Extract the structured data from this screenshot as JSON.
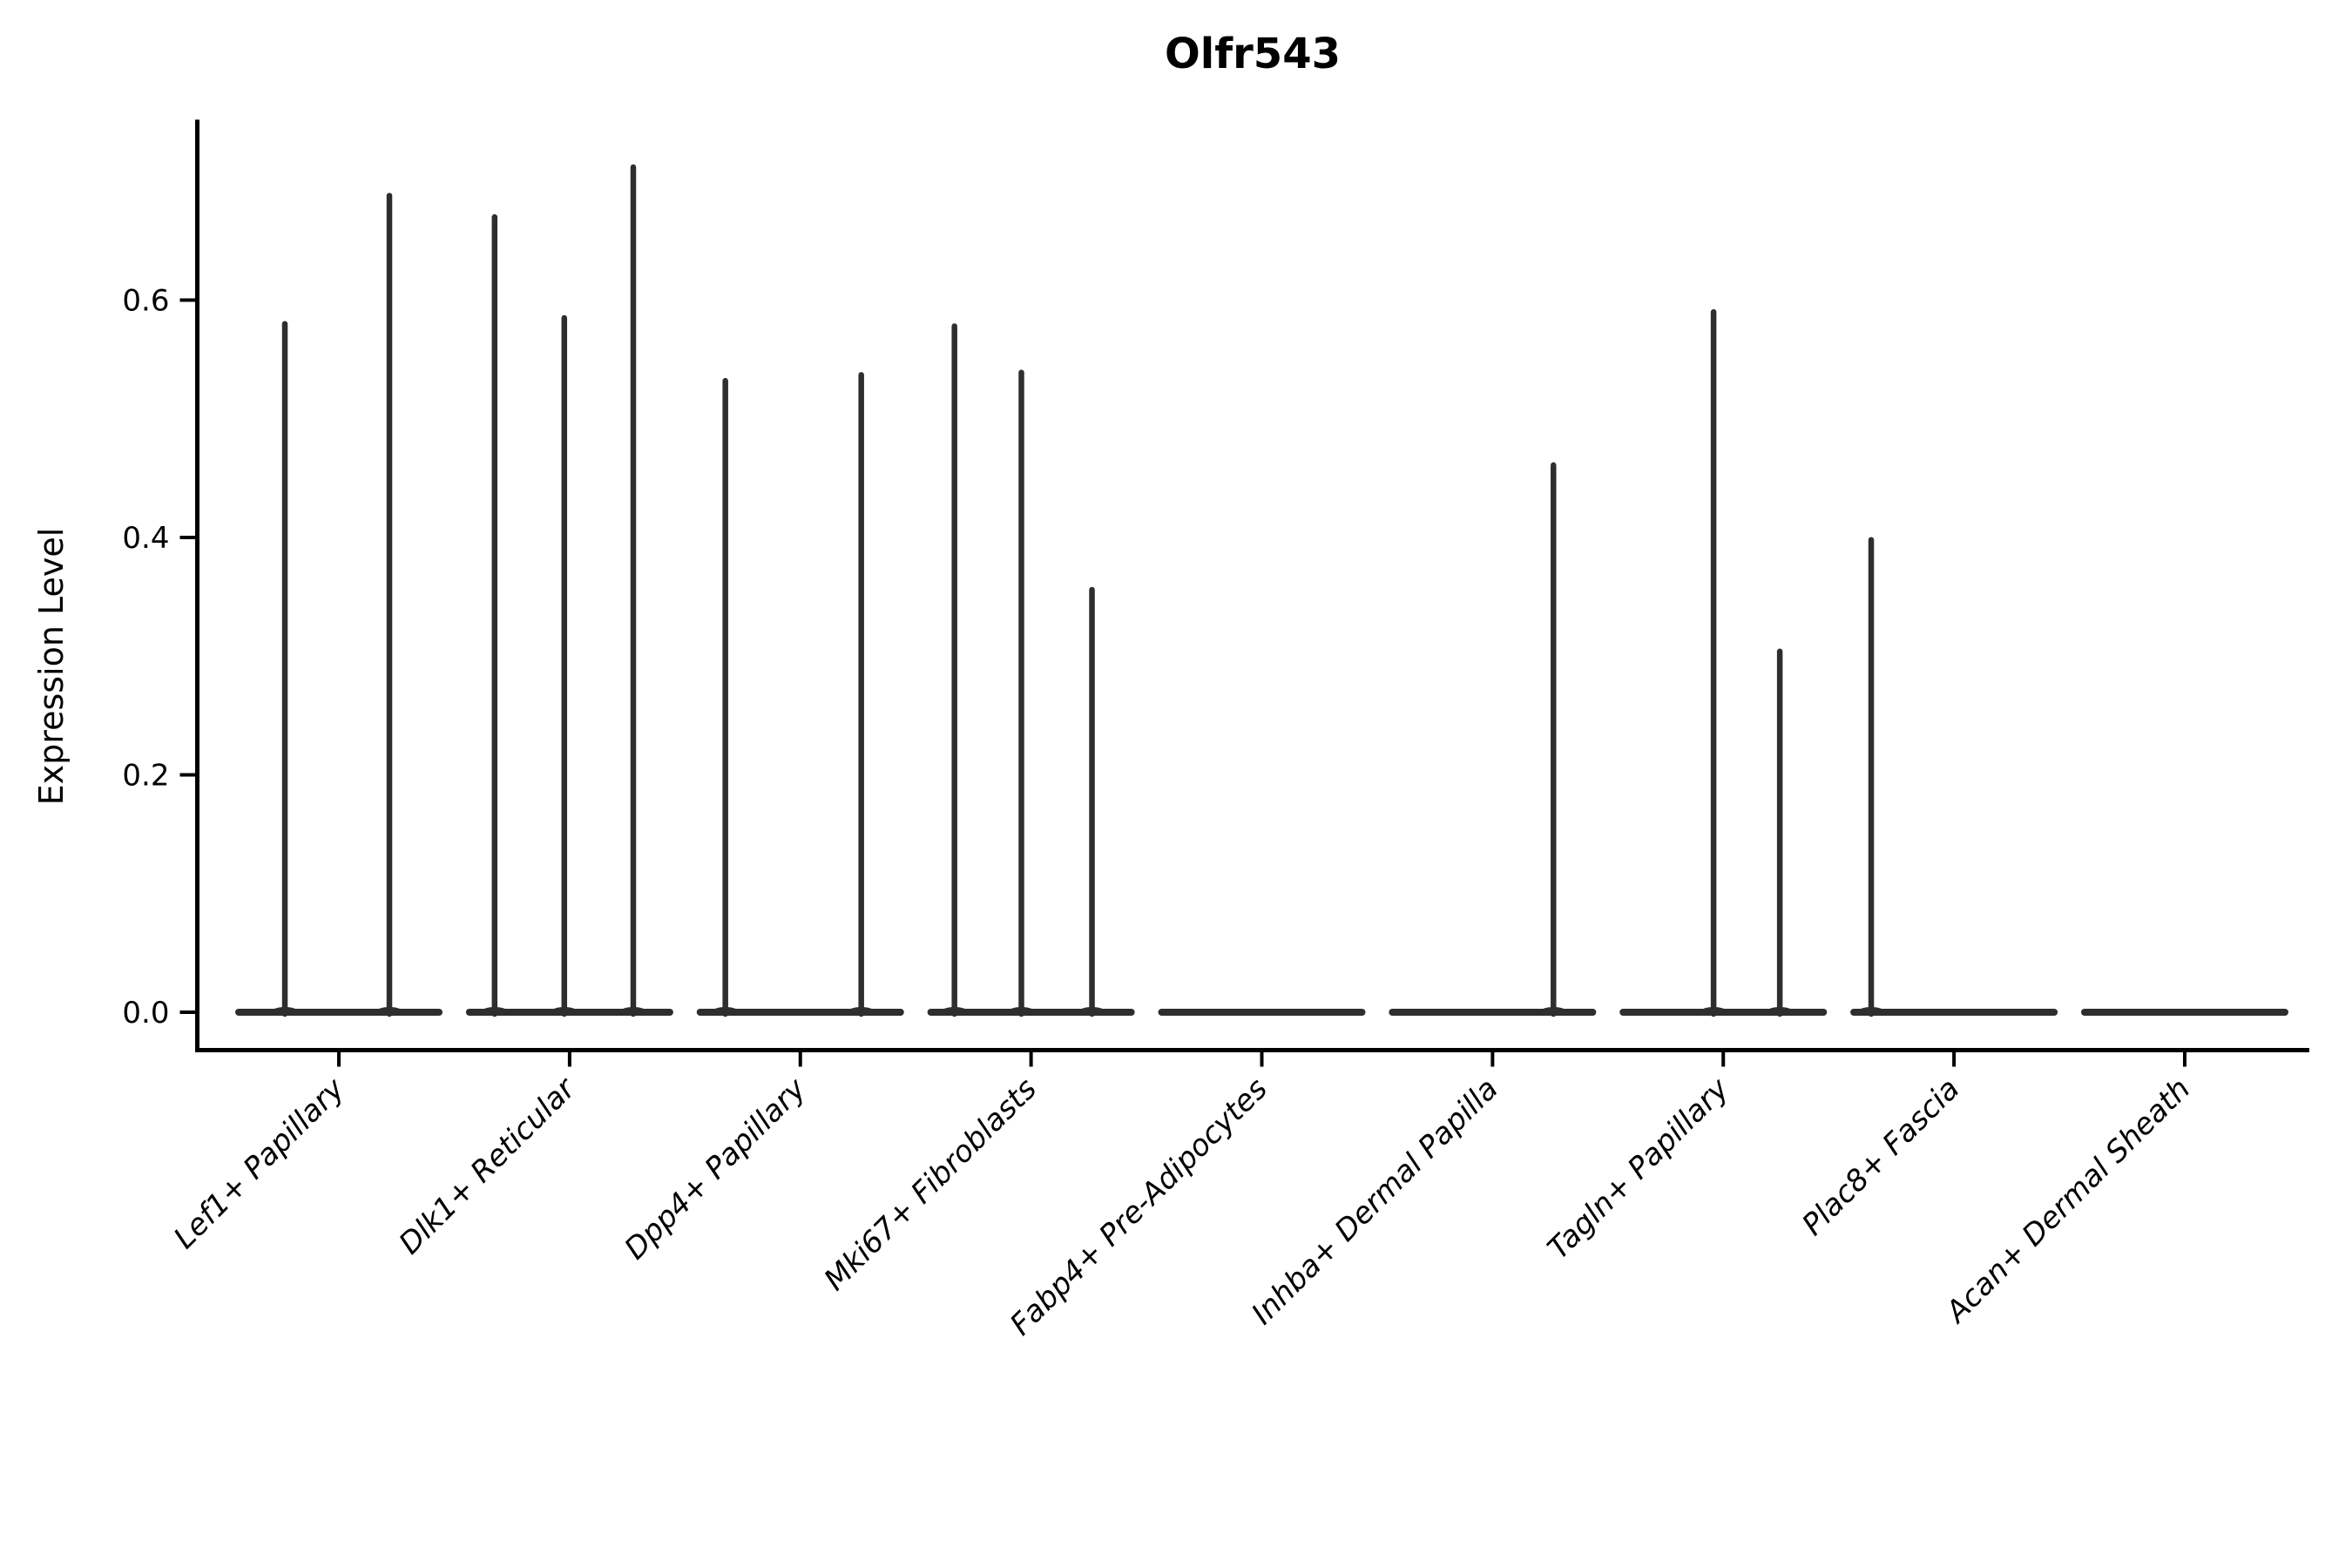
{
  "chart_data": {
    "type": "violin",
    "title": "Olfr543",
    "xlabel": "",
    "ylabel": "Expression Level",
    "ylim": [
      -0.03,
      0.752
    ],
    "yticks": [
      {
        "value": 0.0,
        "label": "0.0"
      },
      {
        "value": 0.2,
        "label": "0.2"
      },
      {
        "value": 0.4,
        "label": "0.4"
      },
      {
        "value": 0.6,
        "label": "0.6"
      }
    ],
    "grid": false,
    "legend": "none",
    "x_label_rotation_deg": 45,
    "x_label_style": "italic",
    "violin_color": "#2e2e30",
    "axis_color": "#000000",
    "baseline_value": 0.0,
    "categories": [
      "Lef1+ Papillary",
      "Dlk1+ Reticular",
      "Dpp4+ Papillary",
      "Mki67+ Fibroblasts",
      "Fabp4+ Pre-Adipocytes",
      "Inhba+ Dermal Papilla",
      "Tagln+ Papillary",
      "Plac8+ Fascia",
      "Acan+ Dermal Sheath"
    ],
    "series": [
      {
        "label": "Lef1+ Papillary",
        "spikes": [
          {
            "offset": -0.234,
            "max": 0.58
          },
          {
            "offset": 0.219,
            "max": 0.688
          }
        ]
      },
      {
        "label": "Dlk1+ Reticular",
        "spikes": [
          {
            "offset": -0.325,
            "max": 0.67
          },
          {
            "offset": -0.023,
            "max": 0.585
          },
          {
            "offset": 0.276,
            "max": 0.712
          }
        ]
      },
      {
        "label": "Dpp4+ Papillary",
        "spikes": [
          {
            "offset": -0.325,
            "max": 0.532
          },
          {
            "offset": 0.264,
            "max": 0.537
          }
        ]
      },
      {
        "label": "Mki67+ Fibroblasts",
        "spikes": [
          {
            "offset": -0.332,
            "max": 0.578
          },
          {
            "offset": -0.042,
            "max": 0.539
          },
          {
            "offset": 0.264,
            "max": 0.356
          }
        ]
      },
      {
        "label": "Fabp4+ Pre-Adipocytes",
        "spikes": []
      },
      {
        "label": "Inhba+ Dermal Papilla",
        "spikes": [
          {
            "offset": 0.264,
            "max": 0.461
          }
        ]
      },
      {
        "label": "Tagln+ Papillary",
        "spikes": [
          {
            "offset": -0.042,
            "max": 0.59
          },
          {
            "offset": 0.245,
            "max": 0.304
          }
        ]
      },
      {
        "label": "Plac8+ Fascia",
        "spikes": [
          {
            "offset": -0.359,
            "max": 0.398
          }
        ]
      },
      {
        "label": "Acan+ Dermal Sheath",
        "spikes": []
      }
    ]
  }
}
